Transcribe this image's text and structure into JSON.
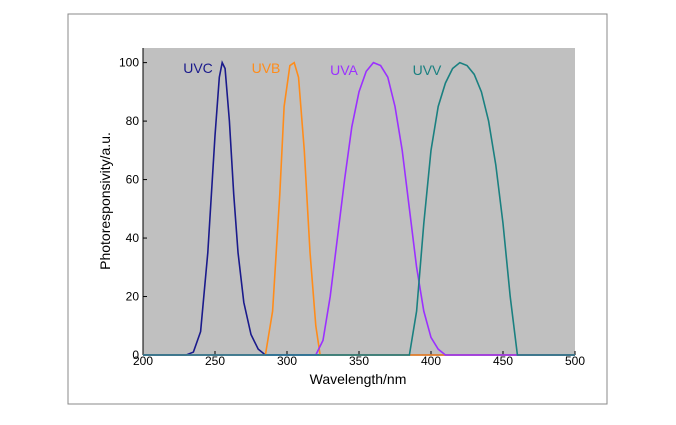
{
  "chart_data": {
    "type": "line",
    "x_label": "Wavelength/nm",
    "y_label": "Photoresponsivity/a.u.",
    "xlim": [
      200,
      500
    ],
    "xticks": [
      200,
      250,
      300,
      350,
      400,
      450,
      500
    ],
    "ylim": [
      0,
      105
    ],
    "yticks": [
      0,
      20,
      40,
      60,
      80,
      100
    ],
    "background": "#c0c0c0",
    "series": [
      {
        "name": "UVC",
        "color": "#1a1a8c",
        "x": [
          200,
          230,
          235,
          240,
          245,
          250,
          253,
          255,
          257,
          260,
          263,
          266,
          270,
          275,
          280,
          285,
          500
        ],
        "values": [
          0,
          0,
          1,
          8,
          35,
          75,
          95,
          100,
          98,
          80,
          55,
          35,
          18,
          7,
          2,
          0,
          0
        ]
      },
      {
        "name": "UVB",
        "color": "#ff8c1a",
        "x": [
          200,
          285,
          290,
          295,
          298,
          302,
          305,
          308,
          312,
          316,
          320,
          323,
          500
        ],
        "values": [
          0,
          0,
          15,
          55,
          85,
          99,
          100,
          95,
          70,
          35,
          10,
          0,
          0
        ]
      },
      {
        "name": "UVA",
        "color": "#9b30ff",
        "x": [
          200,
          320,
          325,
          330,
          335,
          340,
          345,
          350,
          355,
          360,
          365,
          370,
          375,
          380,
          385,
          390,
          395,
          400,
          405,
          410,
          500
        ],
        "values": [
          0,
          0,
          5,
          20,
          40,
          60,
          78,
          90,
          97,
          100,
          99,
          95,
          85,
          70,
          50,
          30,
          15,
          6,
          2,
          0,
          0
        ]
      },
      {
        "name": "UVV",
        "color": "#1a8080",
        "x": [
          200,
          385,
          390,
          395,
          400,
          405,
          410,
          415,
          420,
          425,
          430,
          435,
          440,
          445,
          450,
          455,
          460,
          500
        ],
        "values": [
          0,
          0,
          15,
          45,
          70,
          85,
          93,
          98,
          100,
          99,
          96,
          90,
          80,
          65,
          45,
          20,
          0,
          0
        ]
      }
    ]
  }
}
